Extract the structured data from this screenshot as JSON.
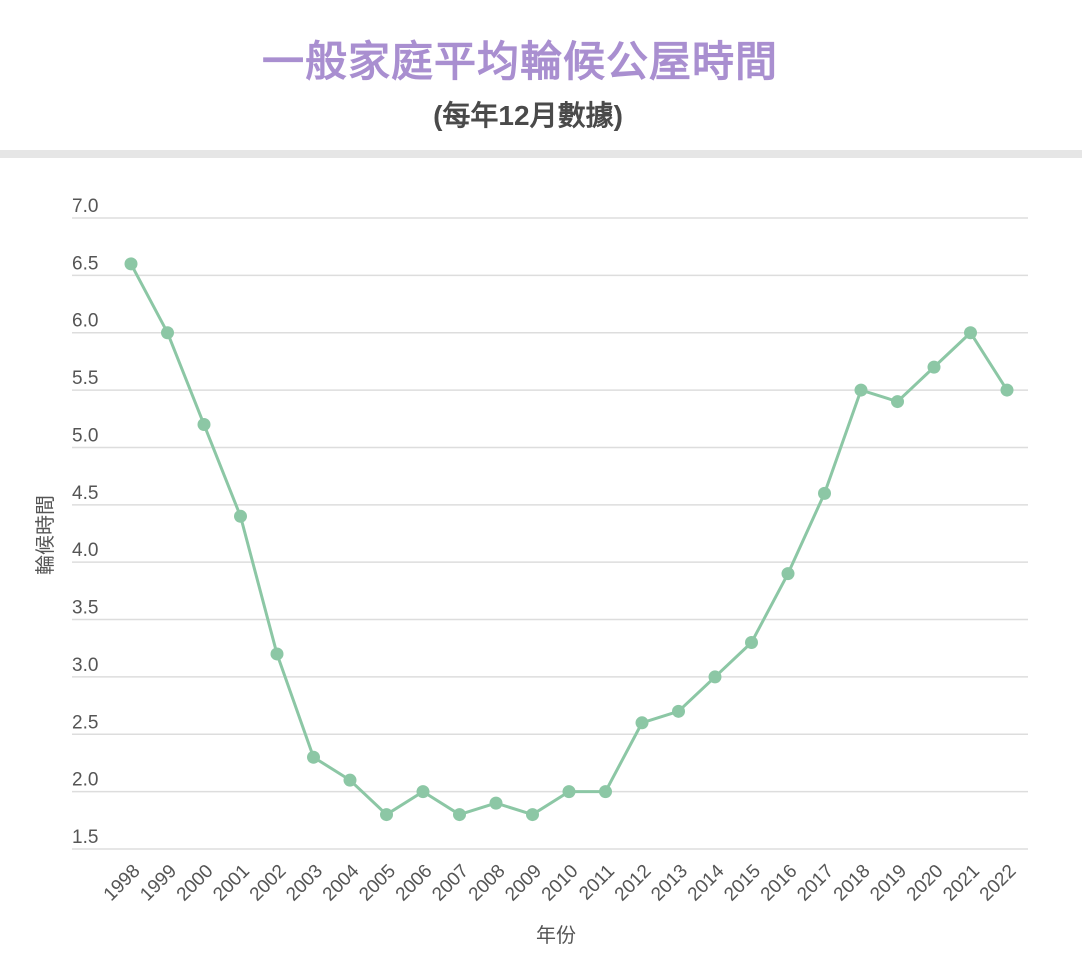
{
  "header": {
    "title": "一般家庭平均輪候公屋時間",
    "subtitle": "(每年12月數據)"
  },
  "chart_data": {
    "type": "line",
    "title": "一般家庭平均輪候公屋時間",
    "subtitle": "(每年12月數據)",
    "xlabel": "年份",
    "ylabel": "輪候時間",
    "ylim": [
      1.5,
      7.0
    ],
    "yticks": [
      "1.5",
      "2.0",
      "2.5",
      "3.0",
      "3.5",
      "4.0",
      "4.5",
      "5.0",
      "5.5",
      "6.0",
      "6.5",
      "7.0"
    ],
    "categories": [
      "1998",
      "1999",
      "2000",
      "2001",
      "2002",
      "2003",
      "2004",
      "2005",
      "2006",
      "2007",
      "2008",
      "2009",
      "2010",
      "2011",
      "2012",
      "2013",
      "2014",
      "2015",
      "2016",
      "2017",
      "2018",
      "2019",
      "2020",
      "2021",
      "2022"
    ],
    "values": [
      6.6,
      6.0,
      5.2,
      4.4,
      3.2,
      2.3,
      2.1,
      1.8,
      2.0,
      1.8,
      1.9,
      1.8,
      2.0,
      2.0,
      2.6,
      2.7,
      3.0,
      3.3,
      3.9,
      4.6,
      5.5,
      5.4,
      5.7,
      6.0,
      5.5
    ],
    "grid": true,
    "legend": "none",
    "colors": {
      "series": "#8cc7a5",
      "grid": "#dddddd",
      "title": "#a98fd0",
      "subtitle": "#4a4a4a",
      "tick": "#555555"
    }
  }
}
